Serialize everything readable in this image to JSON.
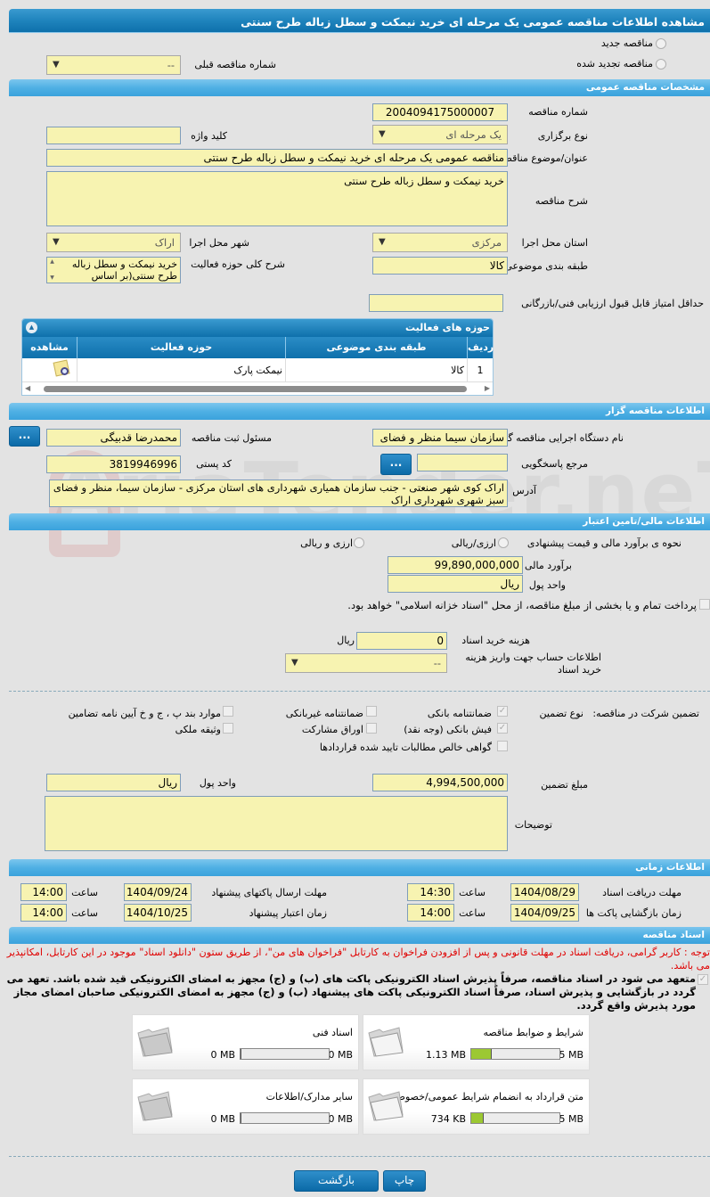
{
  "title": "مشاهده اطلاعات مناقصه عمومی یک مرحله ای خرید نیمکت و سطل زباله طرح سنتی",
  "tender_type": {
    "new_label": "مناقصه جدید",
    "renewed_label": "مناقصه تجدید شده",
    "previous_number_label": "شماره مناقصه قبلی",
    "previous_number_value": "--"
  },
  "general": {
    "header": "مشخصات مناقصه عمومی",
    "tender_number_label": "شماره مناقصه",
    "tender_number": "2004094175000007",
    "holding_type_label": "نوع برگزاری",
    "holding_type": "یک مرحله ای",
    "keyword_label": "کلید واژه",
    "keyword": "",
    "subject_label": "عنوان/موضوع مناقصه",
    "subject": "مناقصه عمومی یک مرحله ای خرید نیمکت و سطل زباله طرح سنتی",
    "description_label": "شرح مناقصه",
    "description": "خرید نیمکت و سطل زباله طرح سنتی",
    "province_label": "استان محل اجرا",
    "province": "مرکزی",
    "city_label": "شهر محل اجرا",
    "city": "اراک",
    "category_label": "طبقه بندی موضوعی",
    "category": "کالا",
    "activity_desc_label": "شرح کلی حوزه فعالیت",
    "activity_desc": "خرید نیمکت و سطل زباله طرح سنتی(بر اساس",
    "min_score_label": "حداقل امتیاز قابل قبول ارزیابی فنی/بازرگانی",
    "min_score": ""
  },
  "activities": {
    "header": "حوزه های فعالیت",
    "columns": [
      "ردیف",
      "طبقه بندی موضوعی",
      "حوزه فعالیت",
      "مشاهده"
    ],
    "rows": [
      {
        "index": "1",
        "category": "کالا",
        "activity": "نیمکت پارک"
      }
    ]
  },
  "organizer": {
    "header": "اطلاعات مناقصه گزار",
    "exec_org_label": "نام دستگاه اجرایی مناقصه گزار",
    "exec_org": "سازمان سیما منظر و فضای",
    "responsible_label": "مسئول ثبت مناقصه",
    "responsible": "محمدرضا قدبیگی",
    "reference_label": "مرجع پاسخگویی",
    "reference": "",
    "postal_label": "کد پستی",
    "postal": "3819946996",
    "address_label": "آدرس",
    "address": "اراک کوی شهر صنعتی - جنب سازمان همیاری شهرداری های استان مرکزی - سازمان سیما، منظر و فضای سبز شهری شهرداری اراک",
    "more_button": "..."
  },
  "finance": {
    "header": "اطلاعات مالی/تامین اعتبار",
    "method_label": "نحوه ی برآورد مالی و قیمت پیشنهادی",
    "method_opt1": "ارزی/ریالی",
    "method_opt2": "ارزی و ریالی",
    "estimate_label": "برآورد مالی",
    "estimate": "99,890,000,000",
    "currency_label": "واحد پول",
    "currency": "ریال",
    "treasury_text": "پرداخت تمام و یا بخشی از مبلغ مناقصه، از محل \"اسناد خزانه اسلامی\" خواهد بود.",
    "doc_fee_label": "هزینه خرید اسناد",
    "doc_fee": "0",
    "doc_fee_unit": "ریال",
    "account_label": "اطلاعات حساب جهت واریز هزینه خرید اسناد",
    "account": "--"
  },
  "guarantee": {
    "label": "تضمین شرکت در مناقصه:",
    "type_label": "نوع تضمین",
    "options": [
      {
        "label": "ضمانتنامه بانکی",
        "checked": true
      },
      {
        "label": "فیش بانکی (وجه نقد)",
        "checked": true
      },
      {
        "label": "گواهی خالص مطالبات تایید شده قراردادها",
        "checked": false
      },
      {
        "label": "ضمانتنامه غیربانکی",
        "checked": false
      },
      {
        "label": "اوراق مشارکت",
        "checked": false
      },
      {
        "label": "موارد بند پ ، ج و خ آیین نامه تضامین",
        "checked": false
      },
      {
        "label": "وثیقه ملکی",
        "checked": false
      }
    ],
    "amount_label": "مبلغ تضمین",
    "amount": "4,994,500,000",
    "currency_label": "واحد پول",
    "currency": "ریال",
    "notes_label": "توضیحات",
    "notes": ""
  },
  "timing": {
    "header": "اطلاعات زمانی",
    "hour_label": "ساعت",
    "doc_deadline_label": "مهلت دریافت اسناد",
    "doc_deadline_date": "1404/08/29",
    "doc_deadline_time": "14:30",
    "submit_deadline_label": "مهلت ارسال پاکتهای پیشنهاد",
    "submit_deadline_date": "1404/09/24",
    "submit_deadline_time": "14:00",
    "opening_label": "زمان بازگشایی پاکت ها",
    "opening_date": "1404/09/25",
    "opening_time": "14:00",
    "validity_label": "زمان اعتبار پیشنهاد",
    "validity_date": "1404/10/25",
    "validity_time": "14:00"
  },
  "documents": {
    "header": "اسناد مناقصه",
    "notice": "توجه : کاربر گرامی، دریافت اسناد در مهلت قانونی و پس از افزودن فراخوان به کارتابل \"فراخوان های من\"، از طریق ستون \"دانلود اسناد\" موجود در این کارتابل، امکانپذیر می باشد.",
    "commitment": "متعهد می شود در اسناد مناقصه، صرفاً پذیرش اسناد الکترونیکی پاکت های (ب) و (ج) مجهز به امضای الکترونیکی قید شده باشد. تعهد می گردد در بازگشایی و پذیرش اسناد، صرفاً اسناد الکترونیکی پاکت های پیشنهاد (ب) و (ج) مجهز به امضای الکترونیکی صاحبان امضای مجاز مورد پذیرش واقع گردد.",
    "files": [
      {
        "name": "شرایط و ضوابط مناقصه",
        "size": "1.13 MB",
        "max": "5 MB",
        "fill": 0.23
      },
      {
        "name": "اسناد فنی",
        "size": "0 MB",
        "max": "50 MB",
        "fill": 0
      },
      {
        "name": "متن قرارداد به انضمام شرایط عمومی/خصوصی",
        "size": "734 KB",
        "max": "5 MB",
        "fill": 0.14
      },
      {
        "name": "سایر مدارک/اطلاعات",
        "size": "0 MB",
        "max": "50 MB",
        "fill": 0
      }
    ]
  },
  "actions": {
    "print": "چاپ",
    "back": "بازگشت"
  },
  "watermark": "AriaTender.neT"
}
